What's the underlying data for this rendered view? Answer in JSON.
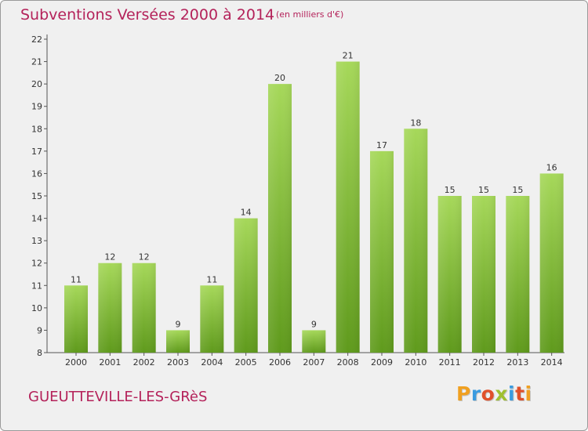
{
  "header": {
    "title": "Subventions Versées 2000 à 2014",
    "subtitle": "(en milliers d'€)"
  },
  "footer": {
    "commune": "GUEUTTEVILLE-LES-GRèS",
    "logo_text": "Proxiti"
  },
  "colors": {
    "title": "#b4225a",
    "bar_top": "#a6d85a",
    "bar_bottom": "#5f9a1c",
    "background": "#f0f0f0"
  },
  "chart_data": {
    "type": "bar",
    "categories": [
      "2000",
      "2001",
      "2002",
      "2003",
      "2004",
      "2005",
      "2006",
      "2007",
      "2008",
      "2009",
      "2010",
      "2011",
      "2012",
      "2013",
      "2014"
    ],
    "values": [
      11,
      12,
      12,
      9,
      11,
      14,
      20,
      9,
      21,
      17,
      18,
      15,
      15,
      15,
      16
    ],
    "data_labels": [
      "11",
      "12",
      "12",
      "9",
      "11",
      "14",
      "20",
      "9",
      "21",
      "17",
      "18",
      "15",
      "15",
      "15",
      "16"
    ],
    "ylim": [
      8,
      22
    ],
    "yticks": [
      "8",
      "9",
      "10",
      "11",
      "12",
      "13",
      "14",
      "15",
      "16",
      "17",
      "18",
      "19",
      "20",
      "21",
      "22"
    ],
    "grid": false
  }
}
